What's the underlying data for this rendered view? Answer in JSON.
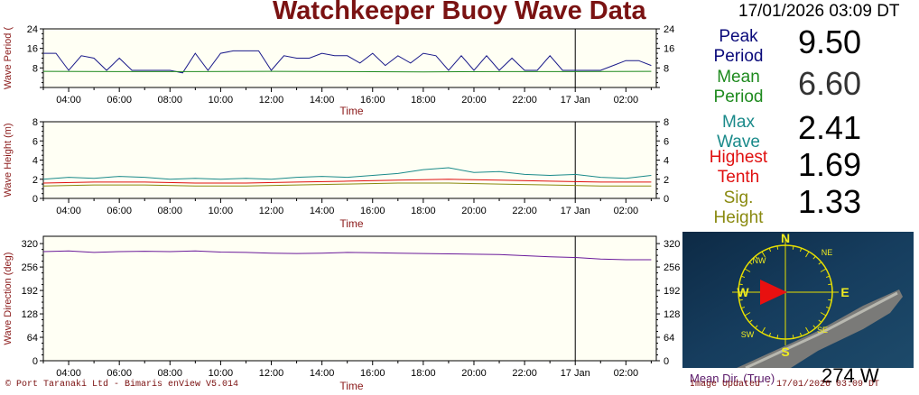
{
  "header": {
    "title": "Watchkeeper Buoy Wave Data",
    "datetime": "17/01/2026 03:09 DT"
  },
  "readouts": [
    {
      "label": "Peak\nPeriod",
      "value": "9.50",
      "color": "#0a0a7a"
    },
    {
      "label": "Mean\nPeriod",
      "value": "6.60",
      "color": "#1e8a1e"
    },
    {
      "label": "Max\nWave",
      "value": "2.41",
      "color": "#1a8a8a"
    },
    {
      "label": "Highest\nTenth",
      "value": "1.69",
      "color": "#e01010"
    },
    {
      "label": "Sig.\nHeight",
      "value": "1.33",
      "color": "#8a8a10"
    }
  ],
  "compass": {
    "n": "N",
    "s": "S",
    "e": "E",
    "w": "W",
    "ne": "NE",
    "nw": "NW",
    "se": "SE",
    "sw": "SW",
    "mean_dir_label": "Mean Dir. (True)",
    "mean_dir_value": "274 W",
    "direction_deg": 274
  },
  "footer": {
    "left": "© Port Taranaki Ltd - Bimaris enView V5.014",
    "right": "Image Updated : 17/01/2026 03:09 DT"
  },
  "chart_data": [
    {
      "type": "line",
      "id": "period",
      "ylabel": "Wave Period (",
      "xlabel": "Time",
      "x_ticks": [
        "04:00",
        "06:00",
        "08:00",
        "10:00",
        "12:00",
        "14:00",
        "16:00",
        "18:00",
        "20:00",
        "22:00",
        "17 Jan",
        "02:00"
      ],
      "x_range_hours": [
        3.0,
        27.2
      ],
      "now_marker_hours": 24.0,
      "ylim": [
        0,
        24
      ],
      "y_ticks": [
        0,
        8,
        16,
        24
      ],
      "y_tick_labels": [
        "8",
        "16",
        "24"
      ],
      "series": [
        {
          "color": "#1a1a8a",
          "values": [
            [
              3.0,
              14
            ],
            [
              3.5,
              14
            ],
            [
              4.0,
              7
            ],
            [
              4.5,
              13
            ],
            [
              5.0,
              12
            ],
            [
              5.5,
              7
            ],
            [
              6.0,
              12
            ],
            [
              6.5,
              7
            ],
            [
              7.0,
              7
            ],
            [
              7.5,
              7
            ],
            [
              8.0,
              7
            ],
            [
              8.5,
              6
            ],
            [
              9.0,
              14
            ],
            [
              9.5,
              7
            ],
            [
              10.0,
              14
            ],
            [
              10.5,
              15
            ],
            [
              11.0,
              15
            ],
            [
              11.5,
              15
            ],
            [
              12.0,
              7
            ],
            [
              12.5,
              13
            ],
            [
              13.0,
              12
            ],
            [
              13.5,
              12
            ],
            [
              14.0,
              14
            ],
            [
              14.5,
              13
            ],
            [
              15.0,
              13
            ],
            [
              15.5,
              10
            ],
            [
              16.0,
              14
            ],
            [
              16.5,
              9
            ],
            [
              17.0,
              13
            ],
            [
              17.5,
              10
            ],
            [
              18.0,
              14
            ],
            [
              18.5,
              13
            ],
            [
              19.0,
              7
            ],
            [
              19.5,
              13
            ],
            [
              20.0,
              7
            ],
            [
              20.5,
              13
            ],
            [
              21.0,
              7
            ],
            [
              21.5,
              12
            ],
            [
              22.0,
              7
            ],
            [
              22.5,
              7
            ],
            [
              23.0,
              13
            ],
            [
              23.5,
              7
            ],
            [
              24.0,
              7
            ],
            [
              24.5,
              7
            ],
            [
              25.0,
              7
            ],
            [
              25.5,
              9
            ],
            [
              26.0,
              11
            ],
            [
              26.5,
              11
            ],
            [
              27.0,
              9
            ]
          ]
        },
        {
          "color": "#1e8a1e",
          "values": [
            [
              3.0,
              6.6
            ],
            [
              6.0,
              6.5
            ],
            [
              9.0,
              6.5
            ],
            [
              12.0,
              6.6
            ],
            [
              15.0,
              6.5
            ],
            [
              18.0,
              6.4
            ],
            [
              21.0,
              6.5
            ],
            [
              24.0,
              6.5
            ],
            [
              27.0,
              6.6
            ]
          ]
        }
      ]
    },
    {
      "type": "line",
      "id": "height",
      "ylabel": "Wave Height (m)",
      "xlabel": "Time",
      "x_ticks": [
        "04:00",
        "06:00",
        "08:00",
        "10:00",
        "12:00",
        "14:00",
        "16:00",
        "18:00",
        "20:00",
        "22:00",
        "17 Jan",
        "02:00"
      ],
      "x_range_hours": [
        3.0,
        27.2
      ],
      "now_marker_hours": 24.0,
      "ylim": [
        0,
        8
      ],
      "y_ticks": [
        0,
        2,
        4,
        6,
        8
      ],
      "y_tick_labels": [
        "0",
        "2",
        "4",
        "6",
        "8"
      ],
      "series": [
        {
          "color": "#1a8a8a",
          "values": [
            [
              3.0,
              2.0
            ],
            [
              4.0,
              2.2
            ],
            [
              5.0,
              2.1
            ],
            [
              6.0,
              2.3
            ],
            [
              7.0,
              2.2
            ],
            [
              8.0,
              2.0
            ],
            [
              9.0,
              2.1
            ],
            [
              10.0,
              2.0
            ],
            [
              11.0,
              2.1
            ],
            [
              12.0,
              2.0
            ],
            [
              13.0,
              2.2
            ],
            [
              14.0,
              2.3
            ],
            [
              15.0,
              2.2
            ],
            [
              16.0,
              2.4
            ],
            [
              17.0,
              2.6
            ],
            [
              18.0,
              3.0
            ],
            [
              19.0,
              3.2
            ],
            [
              20.0,
              2.7
            ],
            [
              21.0,
              2.8
            ],
            [
              22.0,
              2.5
            ],
            [
              23.0,
              2.4
            ],
            [
              24.0,
              2.5
            ],
            [
              25.0,
              2.2
            ],
            [
              26.0,
              2.1
            ],
            [
              27.0,
              2.4
            ]
          ]
        },
        {
          "color": "#e01010",
          "values": [
            [
              3.0,
              1.6
            ],
            [
              5.0,
              1.7
            ],
            [
              7.0,
              1.7
            ],
            [
              9.0,
              1.6
            ],
            [
              11.0,
              1.6
            ],
            [
              13.0,
              1.7
            ],
            [
              15.0,
              1.8
            ],
            [
              17.0,
              1.9
            ],
            [
              19.0,
              2.0
            ],
            [
              21.0,
              1.9
            ],
            [
              23.0,
              1.8
            ],
            [
              25.0,
              1.7
            ],
            [
              27.0,
              1.7
            ]
          ]
        },
        {
          "color": "#8a8a10",
          "values": [
            [
              3.0,
              1.3
            ],
            [
              5.0,
              1.4
            ],
            [
              7.0,
              1.4
            ],
            [
              9.0,
              1.3
            ],
            [
              11.0,
              1.3
            ],
            [
              13.0,
              1.4
            ],
            [
              15.0,
              1.5
            ],
            [
              17.0,
              1.6
            ],
            [
              19.0,
              1.6
            ],
            [
              21.0,
              1.5
            ],
            [
              23.0,
              1.4
            ],
            [
              25.0,
              1.3
            ],
            [
              27.0,
              1.3
            ]
          ]
        }
      ]
    },
    {
      "type": "line",
      "id": "direction",
      "ylabel": "Wave Direction (deg)",
      "xlabel": "Time",
      "x_ticks": [
        "04:00",
        "06:00",
        "08:00",
        "10:00",
        "12:00",
        "14:00",
        "16:00",
        "18:00",
        "20:00",
        "22:00",
        "17 Jan",
        "02:00"
      ],
      "x_range_hours": [
        3.0,
        27.2
      ],
      "now_marker_hours": 24.0,
      "ylim": [
        0,
        340
      ],
      "y_ticks": [
        0,
        64,
        128,
        192,
        256,
        320
      ],
      "y_tick_labels": [
        "0",
        "64",
        "128",
        "192",
        "256",
        "320"
      ],
      "series": [
        {
          "color": "#6a1a9a",
          "values": [
            [
              3.0,
              298
            ],
            [
              4.0,
              300
            ],
            [
              5.0,
              296
            ],
            [
              6.0,
              298
            ],
            [
              7.0,
              299
            ],
            [
              8.0,
              298
            ],
            [
              9.0,
              300
            ],
            [
              10.0,
              297
            ],
            [
              11.0,
              296
            ],
            [
              12.0,
              294
            ],
            [
              13.0,
              293
            ],
            [
              14.0,
              294
            ],
            [
              15.0,
              296
            ],
            [
              16.0,
              295
            ],
            [
              17.0,
              294
            ],
            [
              18.0,
              293
            ],
            [
              19.0,
              292
            ],
            [
              20.0,
              291
            ],
            [
              21.0,
              290
            ],
            [
              22.0,
              287
            ],
            [
              23.0,
              284
            ],
            [
              24.0,
              282
            ],
            [
              25.0,
              278
            ],
            [
              26.0,
              276
            ],
            [
              27.0,
              276
            ]
          ]
        }
      ]
    }
  ]
}
